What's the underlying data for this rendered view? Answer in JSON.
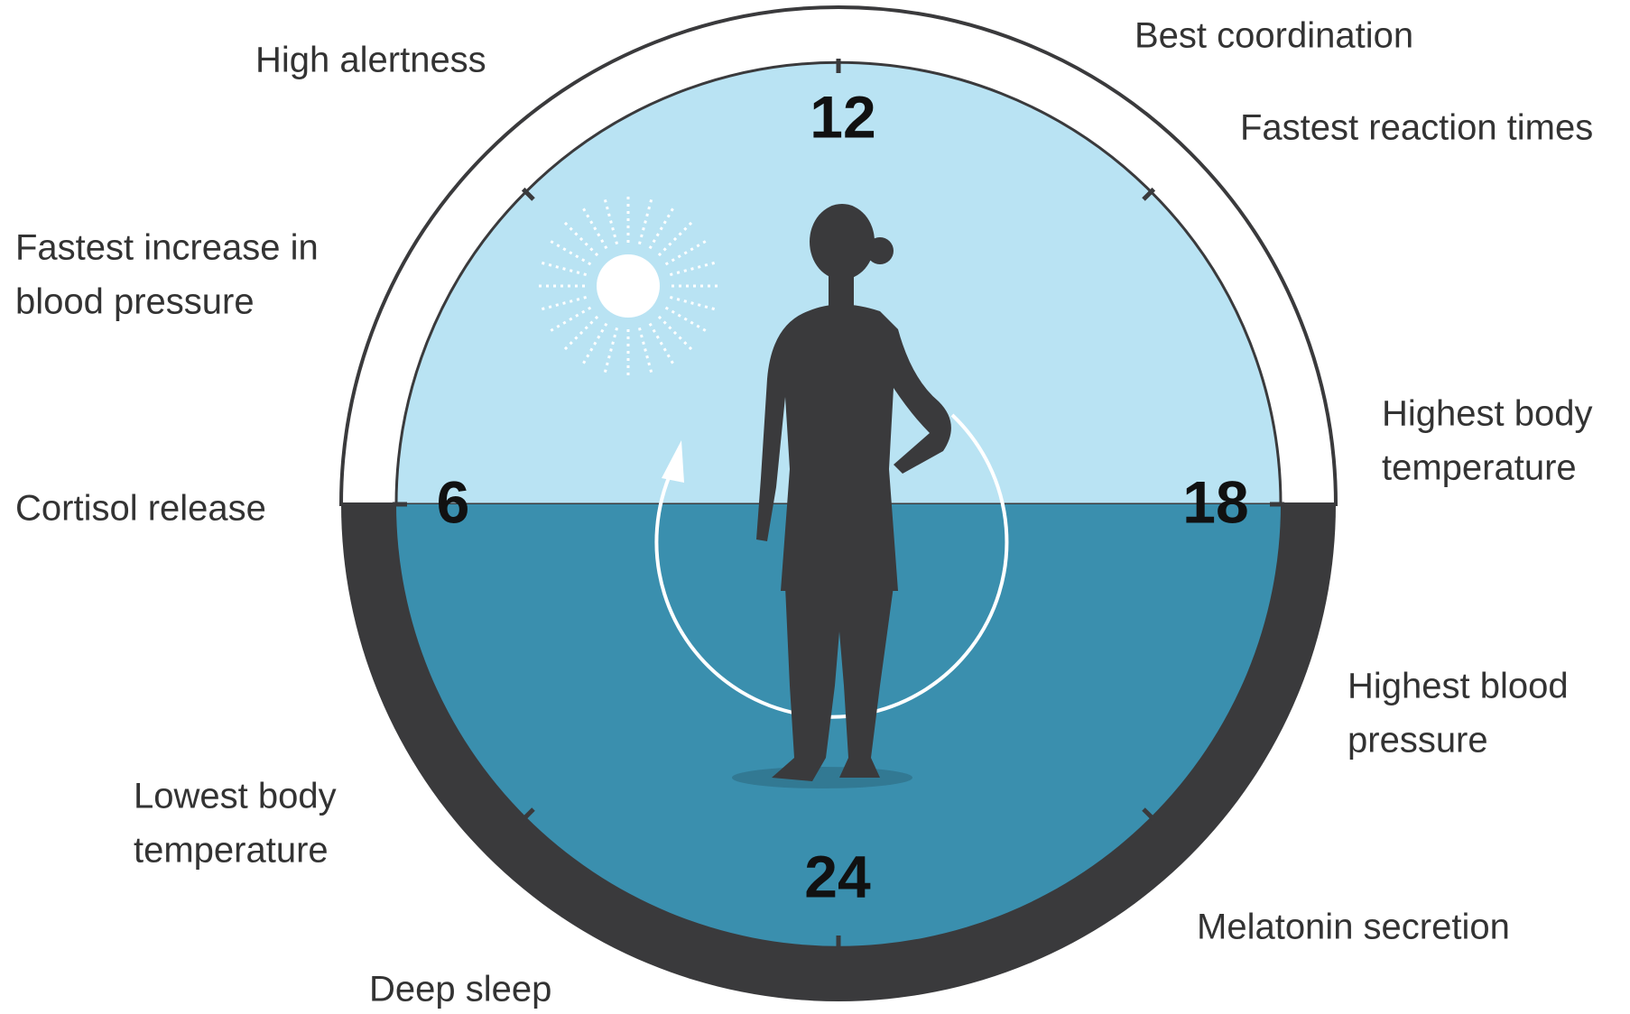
{
  "title_labels": [
    {
      "lines": [
        "High alertness"
      ]
    },
    {
      "lines": [
        "Best coordination"
      ]
    },
    {
      "lines": [
        "Fastest reaction times"
      ]
    },
    {
      "lines": [
        "Fastest increase in",
        "blood pressure"
      ]
    },
    {
      "lines": [
        "Highest body",
        "temperature"
      ]
    },
    {
      "lines": [
        "Cortisol release"
      ]
    },
    {
      "lines": [
        "Highest blood",
        "pressure"
      ]
    },
    {
      "lines": [
        "Lowest body",
        "temperature"
      ]
    },
    {
      "lines": [
        "Melatonin secretion"
      ]
    },
    {
      "lines": [
        "Deep sleep"
      ]
    }
  ],
  "clock_hours": [
    "12",
    "6",
    "18",
    "24"
  ]
}
